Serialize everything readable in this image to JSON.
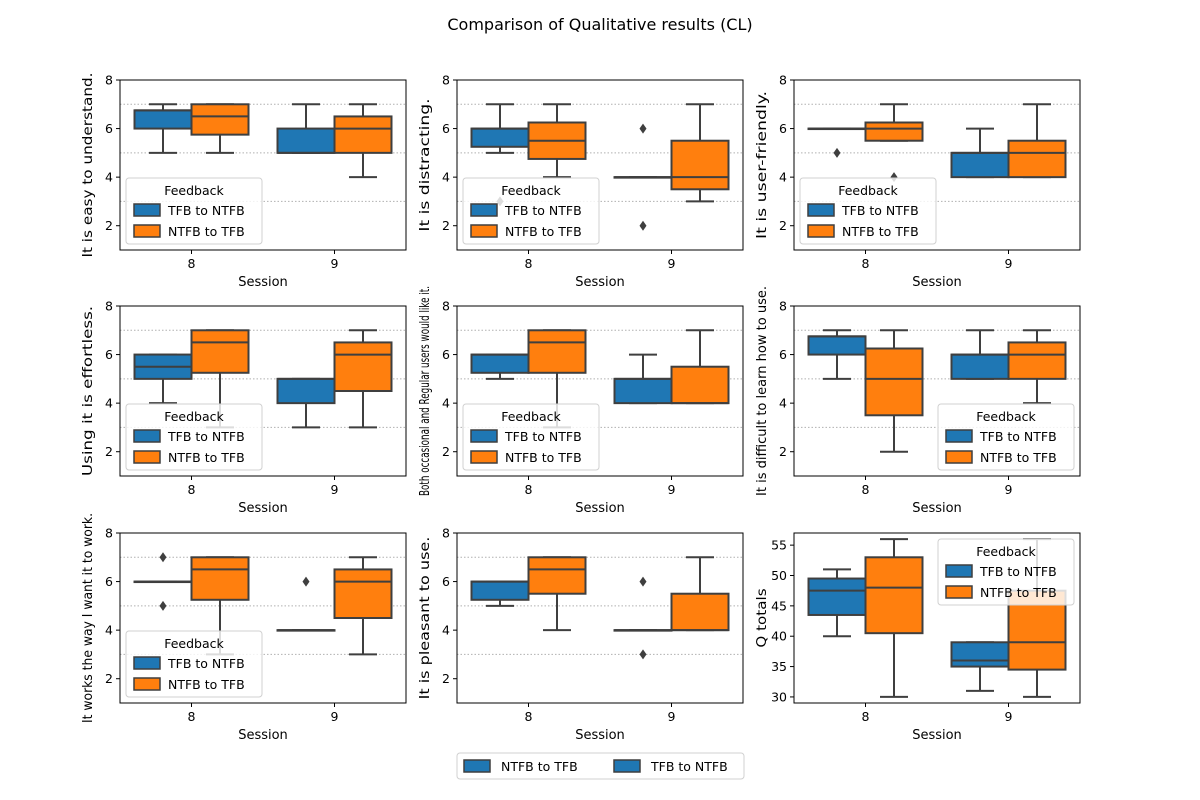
{
  "figure_title": "Comparison of Qualitative results (CL)",
  "colors": {
    "tfb_to_ntfb": "#1f77b4",
    "ntfb_to_tfb": "#ff7f0e",
    "median_line": "#3f3f3f"
  },
  "bottom_legend": [
    "NTFB to TFB",
    "TFB to NTFB"
  ],
  "chart_data": [
    {
      "type": "box",
      "ylabel": "It is easy to understand.",
      "xlabel": "Session",
      "categories": [
        "8",
        "9"
      ],
      "ylim": [
        1,
        8
      ],
      "yticks": [
        2,
        4,
        6,
        8
      ],
      "grid_y": [
        3,
        5,
        7
      ],
      "legend": {
        "title": "Feedback",
        "entries": [
          "TFB to NTFB",
          "NTFB to TFB"
        ],
        "loc": "lower-left"
      },
      "series": [
        {
          "name": "TFB to NTFB",
          "boxes": [
            {
              "min": 5,
              "q1": 6,
              "median": 6.75,
              "q3": 6.75,
              "max": 7,
              "outliers": []
            },
            {
              "min": 5,
              "q1": 5,
              "median": 5,
              "q3": 6,
              "max": 7,
              "outliers": []
            }
          ]
        },
        {
          "name": "NTFB to TFB",
          "boxes": [
            {
              "min": 5,
              "q1": 5.75,
              "median": 6.5,
              "q3": 7,
              "max": 7,
              "outliers": []
            },
            {
              "min": 4,
              "q1": 5,
              "median": 6,
              "q3": 6.5,
              "max": 7,
              "outliers": []
            }
          ]
        }
      ]
    },
    {
      "type": "box",
      "ylabel": "It is distracting.",
      "xlabel": "Session",
      "categories": [
        "8",
        "9"
      ],
      "ylim": [
        1,
        8
      ],
      "yticks": [
        2,
        4,
        6,
        8
      ],
      "grid_y": [
        3,
        5,
        7
      ],
      "legend": {
        "title": "Feedback",
        "entries": [
          "TFB to NTFB",
          "NTFB to TFB"
        ],
        "loc": "lower-left"
      },
      "series": [
        {
          "name": "TFB to NTFB",
          "boxes": [
            {
              "min": 5,
              "q1": 5.25,
              "median": 6,
              "q3": 6,
              "max": 7,
              "outliers": [
                3
              ]
            },
            {
              "min": 4,
              "q1": 4,
              "median": 4,
              "q3": 4,
              "max": 4,
              "outliers": [
                6,
                2
              ]
            }
          ]
        },
        {
          "name": "NTFB to TFB",
          "boxes": [
            {
              "min": 4,
              "q1": 4.75,
              "median": 5.5,
              "q3": 6.25,
              "max": 7,
              "outliers": []
            },
            {
              "min": 3,
              "q1": 3.5,
              "median": 4,
              "q3": 5.5,
              "max": 7,
              "outliers": []
            }
          ]
        }
      ]
    },
    {
      "type": "box",
      "ylabel": "It is user-friendly.",
      "xlabel": "Session",
      "categories": [
        "8",
        "9"
      ],
      "ylim": [
        1,
        8
      ],
      "yticks": [
        2,
        4,
        6,
        8
      ],
      "grid_y": [
        3,
        5,
        7
      ],
      "legend": {
        "title": "Feedback",
        "entries": [
          "TFB to NTFB",
          "NTFB to TFB"
        ],
        "loc": "lower-left"
      },
      "series": [
        {
          "name": "TFB to NTFB",
          "boxes": [
            {
              "min": 6,
              "q1": 6,
              "median": 6,
              "q3": 6,
              "max": 6,
              "outliers": [
                5
              ]
            },
            {
              "min": 4,
              "q1": 4,
              "median": 5,
              "q3": 5,
              "max": 6,
              "outliers": []
            }
          ]
        },
        {
          "name": "NTFB to TFB",
          "boxes": [
            {
              "min": 5.5,
              "q1": 5.5,
              "median": 6,
              "q3": 6.25,
              "max": 7,
              "outliers": [
                4
              ]
            },
            {
              "min": 4,
              "q1": 4,
              "median": 5,
              "q3": 5.5,
              "max": 7,
              "outliers": []
            }
          ]
        }
      ]
    },
    {
      "type": "box",
      "ylabel": "Using it is effortless.",
      "xlabel": "Session",
      "categories": [
        "8",
        "9"
      ],
      "ylim": [
        1,
        8
      ],
      "yticks": [
        2,
        4,
        6,
        8
      ],
      "grid_y": [
        3,
        5,
        7
      ],
      "legend": {
        "title": "Feedback",
        "entries": [
          "TFB to NTFB",
          "NTFB to TFB"
        ],
        "loc": "lower-left"
      },
      "series": [
        {
          "name": "TFB to NTFB",
          "boxes": [
            {
              "min": 4,
              "q1": 5,
              "median": 5.5,
              "q3": 6,
              "max": 6,
              "outliers": []
            },
            {
              "min": 3,
              "q1": 4,
              "median": 5,
              "q3": 5,
              "max": 5,
              "outliers": []
            }
          ]
        },
        {
          "name": "NTFB to TFB",
          "boxes": [
            {
              "min": 3,
              "q1": 5.25,
              "median": 6.5,
              "q3": 7,
              "max": 7,
              "outliers": []
            },
            {
              "min": 3,
              "q1": 4.5,
              "median": 6,
              "q3": 6.5,
              "max": 7,
              "outliers": []
            }
          ]
        }
      ]
    },
    {
      "type": "box",
      "ylabel": "Both occasional and Regular users would like it.",
      "xlabel": "Session",
      "categories": [
        "8",
        "9"
      ],
      "ylim": [
        1,
        8
      ],
      "yticks": [
        2,
        4,
        6,
        8
      ],
      "grid_y": [
        3,
        5,
        7
      ],
      "legend": {
        "title": "Feedback",
        "entries": [
          "TFB to NTFB",
          "NTFB to TFB"
        ],
        "loc": "lower-left"
      },
      "series": [
        {
          "name": "TFB to NTFB",
          "boxes": [
            {
              "min": 5,
              "q1": 5.25,
              "median": 6,
              "q3": 6,
              "max": 6,
              "outliers": []
            },
            {
              "min": 4,
              "q1": 4,
              "median": 5,
              "q3": 5,
              "max": 6,
              "outliers": []
            }
          ]
        },
        {
          "name": "NTFB to TFB",
          "boxes": [
            {
              "min": 3,
              "q1": 5.25,
              "median": 6.5,
              "q3": 7,
              "max": 7,
              "outliers": []
            },
            {
              "min": 4,
              "q1": 4,
              "median": 4,
              "q3": 5.5,
              "max": 7,
              "outliers": []
            }
          ]
        }
      ]
    },
    {
      "type": "box",
      "ylabel": "It is difficult to learn how to use.",
      "xlabel": "Session",
      "categories": [
        "8",
        "9"
      ],
      "ylim": [
        1,
        8
      ],
      "yticks": [
        2,
        4,
        6,
        8
      ],
      "grid_y": [
        3,
        5,
        7
      ],
      "legend": {
        "title": "Feedback",
        "entries": [
          "TFB to NTFB",
          "NTFB to TFB"
        ],
        "loc": "lower-right"
      },
      "series": [
        {
          "name": "TFB to NTFB",
          "boxes": [
            {
              "min": 5,
              "q1": 6,
              "median": 6.75,
              "q3": 6.75,
              "max": 7,
              "outliers": []
            },
            {
              "min": 5,
              "q1": 5,
              "median": 6,
              "q3": 6,
              "max": 7,
              "outliers": []
            }
          ]
        },
        {
          "name": "NTFB to TFB",
          "boxes": [
            {
              "min": 2,
              "q1": 3.5,
              "median": 5,
              "q3": 6.25,
              "max": 7,
              "outliers": []
            },
            {
              "min": 4,
              "q1": 5,
              "median": 6,
              "q3": 6.5,
              "max": 7,
              "outliers": []
            }
          ]
        }
      ]
    },
    {
      "type": "box",
      "ylabel": "It works the way I want it to work.",
      "xlabel": "Session",
      "categories": [
        "8",
        "9"
      ],
      "ylim": [
        1,
        8
      ],
      "yticks": [
        2,
        4,
        6,
        8
      ],
      "grid_y": [
        3,
        5,
        7
      ],
      "legend": {
        "title": "Feedback",
        "entries": [
          "TFB to NTFB",
          "NTFB to TFB"
        ],
        "loc": "lower-left"
      },
      "series": [
        {
          "name": "TFB to NTFB",
          "boxes": [
            {
              "min": 6,
              "q1": 6,
              "median": 6,
              "q3": 6,
              "max": 6,
              "outliers": [
                7,
                5
              ]
            },
            {
              "min": 4,
              "q1": 4,
              "median": 4,
              "q3": 4,
              "max": 4,
              "outliers": [
                6
              ]
            }
          ]
        },
        {
          "name": "NTFB to TFB",
          "boxes": [
            {
              "min": 3,
              "q1": 5.25,
              "median": 6.5,
              "q3": 7,
              "max": 7,
              "outliers": []
            },
            {
              "min": 3,
              "q1": 4.5,
              "median": 6,
              "q3": 6.5,
              "max": 7,
              "outliers": []
            }
          ]
        }
      ]
    },
    {
      "type": "box",
      "ylabel": "It is pleasant to use.",
      "xlabel": "Session",
      "categories": [
        "8",
        "9"
      ],
      "ylim": [
        1,
        8
      ],
      "yticks": [
        2,
        4,
        6,
        8
      ],
      "grid_y": [
        3,
        5,
        7
      ],
      "legend": null,
      "series": [
        {
          "name": "TFB to NTFB",
          "boxes": [
            {
              "min": 5,
              "q1": 5.25,
              "median": 6,
              "q3": 6,
              "max": 6,
              "outliers": []
            },
            {
              "min": 4,
              "q1": 4,
              "median": 4,
              "q3": 4,
              "max": 4,
              "outliers": [
                6,
                3
              ]
            }
          ]
        },
        {
          "name": "NTFB to TFB",
          "boxes": [
            {
              "min": 4,
              "q1": 5.5,
              "median": 6.5,
              "q3": 7,
              "max": 7,
              "outliers": []
            },
            {
              "min": 4,
              "q1": 4,
              "median": 4,
              "q3": 5.5,
              "max": 7,
              "outliers": []
            }
          ]
        }
      ]
    },
    {
      "type": "box",
      "ylabel": "Q totals",
      "xlabel": "Session",
      "categories": [
        "8",
        "9"
      ],
      "ylim": [
        29,
        57
      ],
      "yticks": [
        30,
        35,
        40,
        45,
        50,
        55
      ],
      "grid_y": [],
      "legend": {
        "title": "Feedback",
        "entries": [
          "TFB to NTFB",
          "NTFB to TFB"
        ],
        "loc": "upper-right"
      },
      "series": [
        {
          "name": "TFB to NTFB",
          "boxes": [
            {
              "min": 40,
              "q1": 43.5,
              "median": 47.5,
              "q3": 49.5,
              "max": 51,
              "outliers": []
            },
            {
              "min": 31,
              "q1": 35,
              "median": 36,
              "q3": 39,
              "max": 39,
              "outliers": []
            }
          ]
        },
        {
          "name": "NTFB to TFB",
          "boxes": [
            {
              "min": 30,
              "q1": 40.5,
              "median": 48,
              "q3": 53,
              "max": 56,
              "outliers": []
            },
            {
              "min": 30,
              "q1": 34.5,
              "median": 39,
              "q3": 47.5,
              "max": 56,
              "outliers": []
            }
          ]
        }
      ]
    }
  ]
}
